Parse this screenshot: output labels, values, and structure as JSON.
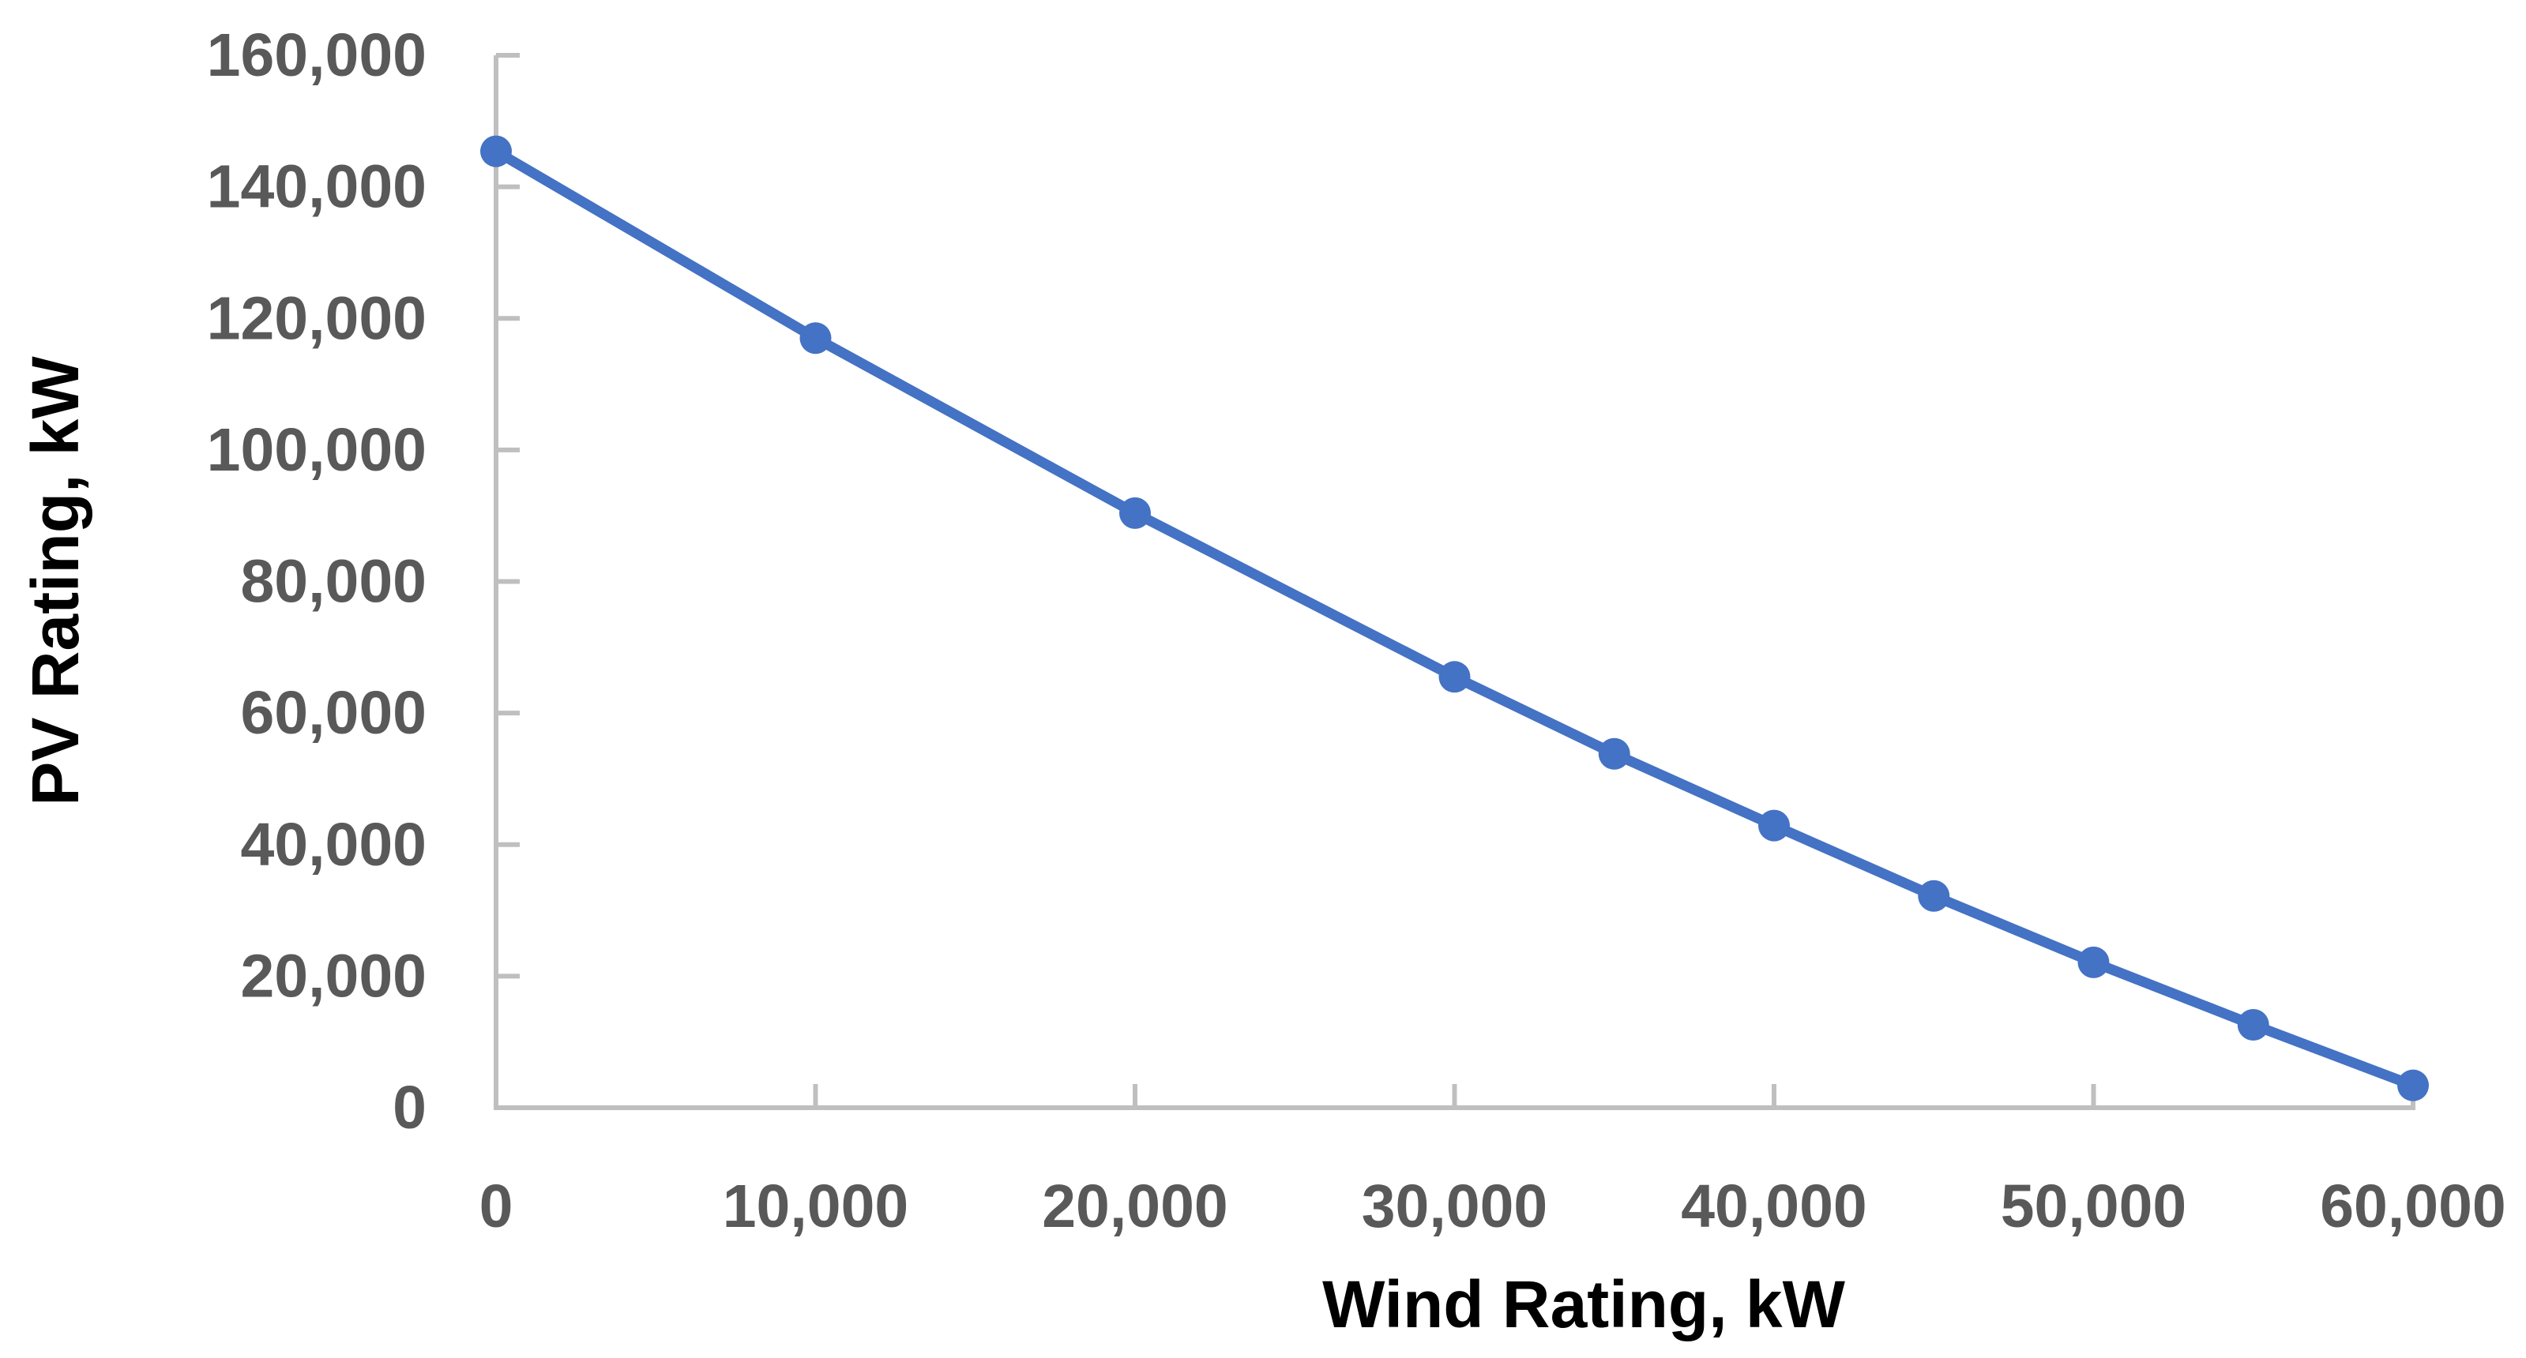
{
  "chart_data": {
    "type": "line",
    "series": [
      {
        "x": [
          0,
          10000,
          20000,
          30000,
          35000,
          40000,
          45000,
          50000,
          55000,
          60000
        ],
        "y": [
          145400,
          117000,
          90400,
          65500,
          53800,
          42900,
          32200,
          22100,
          12600,
          3400
        ]
      }
    ],
    "title": "",
    "xlabel": "Wind Rating, kW",
    "ylabel": "PV Rating, kW",
    "xlim": [
      0,
      60000
    ],
    "ylim": [
      0,
      160000
    ],
    "grid": false,
    "legend": false,
    "marker_shape": "circle",
    "x_ticks": [
      {
        "value": 0,
        "label": "0"
      },
      {
        "value": 10000,
        "label": "10,000"
      },
      {
        "value": 20000,
        "label": "20,000"
      },
      {
        "value": 30000,
        "label": "30,000"
      },
      {
        "value": 40000,
        "label": "40,000"
      },
      {
        "value": 50000,
        "label": "50,000"
      },
      {
        "value": 60000,
        "label": "60,000"
      }
    ],
    "y_ticks": [
      {
        "value": 0,
        "label": "0"
      },
      {
        "value": 20000,
        "label": "20,000"
      },
      {
        "value": 40000,
        "label": "40,000"
      },
      {
        "value": 60000,
        "label": "60,000"
      },
      {
        "value": 80000,
        "label": "80,000"
      },
      {
        "value": 100000,
        "label": "100,000"
      },
      {
        "value": 120000,
        "label": "120,000"
      },
      {
        "value": 140000,
        "label": "140,000"
      },
      {
        "value": 160000,
        "label": "160,000"
      }
    ],
    "colors": {
      "line": "#4472C4",
      "marker": "#4472C4",
      "axis": "#BFBFBF",
      "tick_label": "#595959",
      "axis_title": "#000000",
      "background": "#FFFFFF"
    }
  }
}
